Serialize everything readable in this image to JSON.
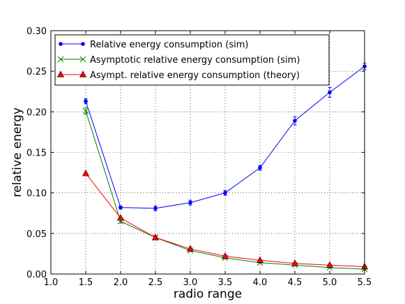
{
  "chart_data": {
    "type": "line",
    "xlabel": "radio range",
    "ylabel": "relative energy",
    "xlim": [
      1.0,
      5.5
    ],
    "ylim": [
      0.0,
      0.3
    ],
    "xticks": [
      "1.0",
      "1.5",
      "2.0",
      "2.5",
      "3.0",
      "3.5",
      "4.0",
      "4.5",
      "5.0",
      "5.5"
    ],
    "yticks": [
      "0.00",
      "0.05",
      "0.10",
      "0.15",
      "0.20",
      "0.25",
      "0.30"
    ],
    "grid": true,
    "legend_position": "top-right",
    "series": [
      {
        "name": "Relative energy consumption (sim)",
        "color": "#0000ff",
        "marker": "dot",
        "x": [
          1.5,
          2.0,
          2.5,
          3.0,
          3.5,
          4.0,
          4.5,
          5.0,
          5.5
        ],
        "y": [
          0.213,
          0.082,
          0.081,
          0.088,
          0.1,
          0.131,
          0.189,
          0.224,
          0.256
        ],
        "err": [
          0.003,
          0.002,
          0.003,
          0.003,
          0.003,
          0.003,
          0.005,
          0.006,
          0.004
        ]
      },
      {
        "name": "Asymptotic relative energy consumption (sim)",
        "color": "#008000",
        "marker": "x",
        "x": [
          1.5,
          2.0,
          2.5,
          3.0,
          3.5,
          4.0,
          4.5,
          5.0,
          5.5
        ],
        "y": [
          0.201,
          0.065,
          0.045,
          0.029,
          0.02,
          0.014,
          0.011,
          0.008,
          0.006
        ],
        "err": [
          0.004,
          0.002,
          0.002,
          0.001,
          0.001,
          0.001,
          0.001,
          0.001,
          0.001
        ]
      },
      {
        "name": "Asympt. relative energy consumption (theory)",
        "color": "#ff0000",
        "marker": "triangle",
        "x": [
          1.5,
          2.0,
          2.5,
          3.0,
          3.5,
          4.0,
          4.5,
          5.0,
          5.5
        ],
        "y": [
          0.124,
          0.069,
          0.045,
          0.031,
          0.022,
          0.017,
          0.013,
          0.011,
          0.009
        ]
      }
    ]
  }
}
